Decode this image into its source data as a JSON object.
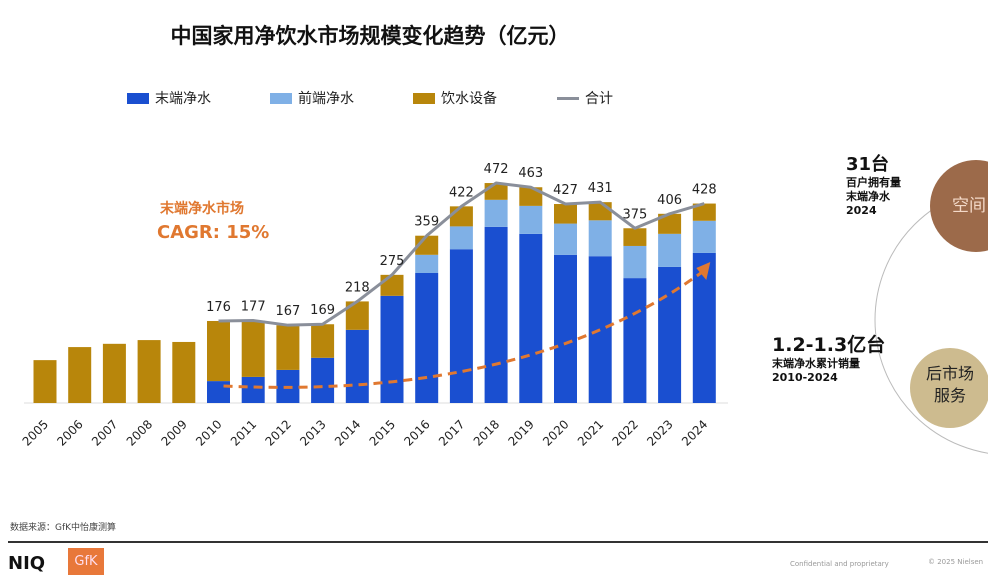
{
  "chart_data": {
    "type": "bar",
    "title": "中国家用净饮水市场规模变化趋势（亿元）",
    "categories": [
      "2005",
      "2006",
      "2007",
      "2008",
      "2009",
      "2010",
      "2011",
      "2012",
      "2013",
      "2014",
      "2015",
      "2016",
      "2017",
      "2018",
      "2019",
      "2020",
      "2021",
      "2022",
      "2023",
      "2024"
    ],
    "stacked": true,
    "series": [
      {
        "name": "末端净水",
        "color": "#1a4fd0",
        "values": [
          0,
          0,
          0,
          0,
          0,
          47,
          56,
          71,
          97,
          157,
          230,
          279,
          330,
          378,
          363,
          318,
          315,
          268,
          292,
          322
        ]
      },
      {
        "name": "前端净水",
        "color": "#7fb0e6",
        "values": [
          0,
          0,
          0,
          0,
          0,
          0,
          0,
          0,
          0,
          0,
          0,
          39,
          49,
          58,
          60,
          67,
          77,
          69,
          71,
          69
        ]
      },
      {
        "name": "饮水设备",
        "color": "#b8860b",
        "values": [
          92,
          120,
          127,
          135,
          131,
          129,
          121,
          96,
          72,
          61,
          45,
          41,
          43,
          36,
          40,
          42,
          39,
          38,
          43,
          37
        ]
      }
    ],
    "total_line": {
      "name": "合计",
      "color": "#8a8f9a",
      "values": [
        null,
        null,
        null,
        null,
        null,
        176,
        177,
        167,
        169,
        218,
        275,
        359,
        422,
        472,
        463,
        427,
        431,
        375,
        406,
        428
      ]
    },
    "total_labels": [
      "",
      "",
      "",
      "",
      "",
      "176",
      "177",
      "167",
      "169",
      "218",
      "275",
      "359",
      "422",
      "472",
      "463",
      "427",
      "431",
      "375",
      "406",
      "428"
    ],
    "ylim": [
      0,
      500
    ],
    "grid": false,
    "legend": "top",
    "annotation": {
      "line1": "末端净水市场",
      "line2": "CAGR: 15%",
      "color": "#e07830",
      "trend_from": "2010",
      "trend_to": "2024"
    }
  },
  "side": {
    "stat1": {
      "big": "31台",
      "l1": "百户拥有量",
      "l2": "末端净水",
      "l3": "2024"
    },
    "stat2": {
      "big": "1.2-1.3亿台",
      "l1": "末端净水累计销量",
      "l2": "2010-2024"
    },
    "circle1": "空间",
    "circle2a": "后市场",
    "circle2b": "服务"
  },
  "footer": {
    "source": "数据来源：GfK中怡康测算",
    "logo1": "NIQ",
    "logo2": "GfK",
    "confidential": "Confidential and proprietary",
    "copyright": "© 2025 Nielsen"
  }
}
